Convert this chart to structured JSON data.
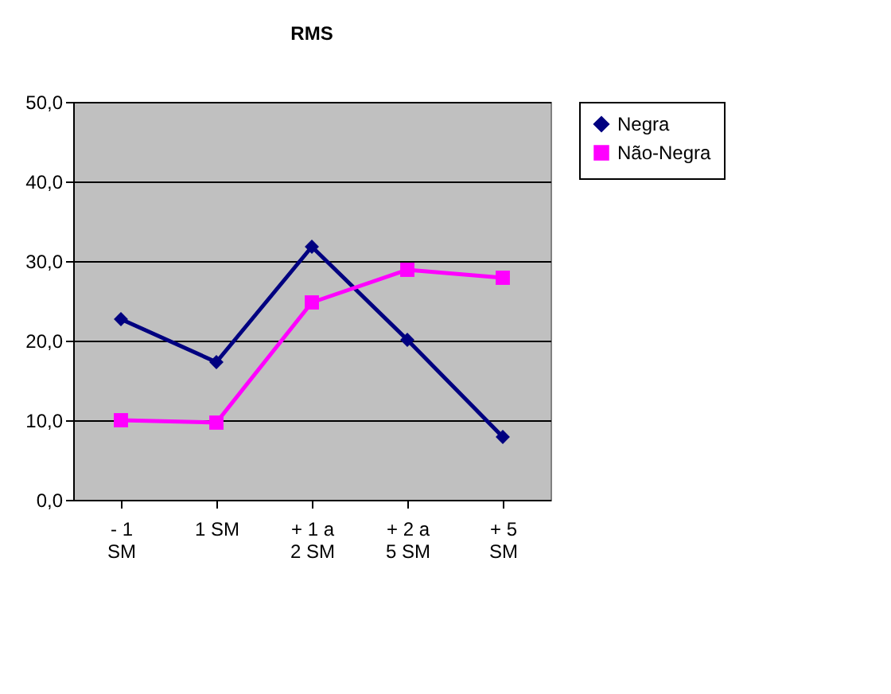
{
  "chart_data": {
    "type": "line",
    "title": "RMS",
    "categories": [
      "- 1 SM",
      "1 SM",
      "+ 1 a 2 SM",
      "+ 2 a 5 SM",
      "+ 5 SM"
    ],
    "series": [
      {
        "name": "Negra",
        "color": "#000080",
        "marker": "diamond",
        "values": [
          22.7,
          17.3,
          31.8,
          20.1,
          7.9
        ]
      },
      {
        "name": "Não-Negra",
        "color": "#ff00ff",
        "marker": "square",
        "values": [
          10.0,
          9.7,
          24.8,
          28.9,
          27.9
        ]
      }
    ],
    "ylim": [
      0,
      50
    ],
    "yticks": [
      {
        "value": 0,
        "label": "0,0"
      },
      {
        "value": 10,
        "label": "10,0"
      },
      {
        "value": 20,
        "label": "20,0"
      },
      {
        "value": 30,
        "label": "30,0"
      },
      {
        "value": 40,
        "label": "40,0"
      },
      {
        "value": 50,
        "label": "50,0"
      }
    ],
    "grid": "y",
    "legend": "right",
    "line_style": "solid"
  }
}
